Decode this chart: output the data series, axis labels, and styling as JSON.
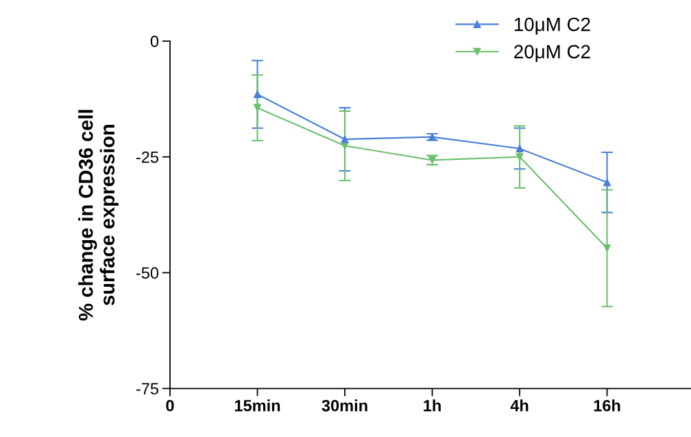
{
  "chart_data": {
    "type": "line",
    "ylabel": "% change in CD36 cell\nsurface expression",
    "categories": [
      "0",
      "15min",
      "30min",
      "1h",
      "4h",
      "16h"
    ],
    "series": [
      {
        "name": "10μM C2",
        "color": "#4a7fd8",
        "marker": "triangle",
        "values": [
          null,
          -11.5,
          -21.2,
          -20.7,
          -23.2,
          -30.5
        ],
        "errors": [
          null,
          7.3,
          6.8,
          0.7,
          4.4,
          6.5
        ]
      },
      {
        "name": "20μM C2",
        "color": "#6cbf6c",
        "marker": "triangle-down",
        "values": [
          null,
          -14.4,
          -22.6,
          -25.7,
          -25.0,
          -44.7
        ],
        "errors": [
          null,
          7.1,
          7.5,
          1.0,
          6.7,
          12.6
        ]
      }
    ],
    "ylim": [
      -75,
      0
    ],
    "yticks": [
      -75,
      -50,
      -25,
      0
    ],
    "grid": false,
    "legend": "top right"
  }
}
